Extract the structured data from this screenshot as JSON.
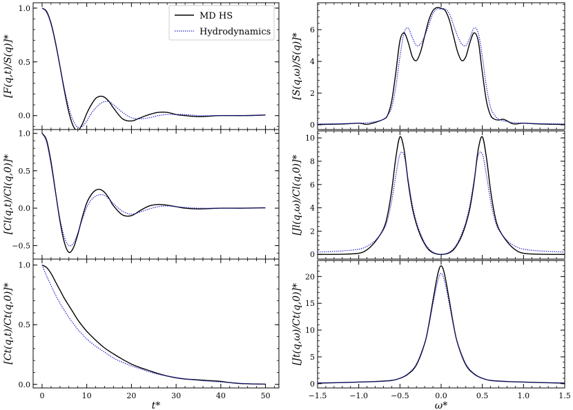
{
  "colors": {
    "md": "#000000",
    "hydro": "#2222cc"
  },
  "legend": {
    "md_label": "MD HS",
    "hydro_label": "Hydrodynamics",
    "placement": "top-right of first panel"
  },
  "chart_data": [
    {
      "type": "line",
      "id": "F",
      "ylabel": "[F(q,t)/S(q)]*",
      "xlabel": "",
      "xlim": [
        -2,
        53
      ],
      "ylim": [
        -0.13,
        1.05
      ],
      "xticks": [
        0,
        10,
        20,
        30,
        40,
        50
      ],
      "yticks": [
        "0.0",
        "0.5",
        "1.0"
      ],
      "series": [
        {
          "name": "MD HS",
          "x": [
            0,
            1,
            2,
            3,
            4,
            5,
            6,
            7,
            8,
            9,
            10,
            11,
            12,
            13,
            14,
            15,
            16,
            18,
            20,
            22,
            24,
            26,
            28,
            30,
            32,
            35,
            40,
            45,
            50
          ],
          "y": [
            1.0,
            0.97,
            0.86,
            0.68,
            0.46,
            0.23,
            0.03,
            -0.1,
            -0.14,
            -0.08,
            0.02,
            0.1,
            0.16,
            0.18,
            0.17,
            0.13,
            0.07,
            -0.03,
            -0.05,
            -0.02,
            0.01,
            0.03,
            0.03,
            0.01,
            0.0,
            -0.01,
            0.0,
            0.0,
            0.005
          ]
        },
        {
          "name": "Hydrodynamics",
          "x": [
            0,
            1,
            2,
            3,
            4,
            5,
            6,
            7,
            8,
            9,
            10,
            11,
            12,
            13,
            14,
            15,
            16,
            18,
            20,
            22,
            24,
            26,
            28,
            30,
            32,
            35,
            40,
            45,
            50
          ],
          "y": [
            1.0,
            0.96,
            0.85,
            0.67,
            0.46,
            0.25,
            0.07,
            -0.05,
            -0.11,
            -0.1,
            -0.05,
            0.02,
            0.07,
            0.11,
            0.13,
            0.13,
            0.1,
            0.03,
            -0.02,
            -0.03,
            -0.02,
            0.0,
            0.01,
            0.01,
            0.01,
            0.0,
            0.0,
            0.0,
            0.005
          ]
        }
      ]
    },
    {
      "type": "line",
      "id": "Cl",
      "ylabel": "[Cl(q,t)/Cl(q,0)]*",
      "xlabel": "",
      "xlim": [
        -2,
        53
      ],
      "ylim": [
        -0.68,
        1.05
      ],
      "xticks": [
        0,
        10,
        20,
        30,
        40,
        50
      ],
      "yticks": [
        "−0.5",
        "0.0",
        "0.5",
        "1.0"
      ],
      "series": [
        {
          "name": "MD HS",
          "x": [
            0,
            1,
            2,
            3,
            4,
            5,
            6,
            7,
            8,
            9,
            10,
            11,
            12,
            13,
            14,
            15,
            16,
            18,
            20,
            22,
            24,
            26,
            28,
            30,
            32,
            35,
            40,
            45,
            50
          ],
          "y": [
            1.0,
            0.91,
            0.62,
            0.22,
            -0.17,
            -0.46,
            -0.59,
            -0.53,
            -0.35,
            -0.12,
            0.07,
            0.18,
            0.24,
            0.25,
            0.21,
            0.13,
            0.03,
            -0.09,
            -0.1,
            -0.03,
            0.03,
            0.05,
            0.04,
            0.02,
            0.0,
            -0.01,
            0.0,
            0.0,
            0.005
          ]
        },
        {
          "name": "Hydrodynamics",
          "x": [
            0,
            1,
            2,
            3,
            4,
            5,
            6,
            7,
            8,
            9,
            10,
            11,
            12,
            13,
            14,
            15,
            16,
            18,
            20,
            22,
            24,
            26,
            28,
            30,
            32,
            35,
            40,
            45,
            50
          ],
          "y": [
            1.0,
            0.88,
            0.58,
            0.21,
            -0.14,
            -0.39,
            -0.5,
            -0.47,
            -0.33,
            -0.15,
            0.01,
            0.11,
            0.16,
            0.18,
            0.17,
            0.12,
            0.06,
            -0.04,
            -0.08,
            -0.05,
            -0.01,
            0.02,
            0.03,
            0.02,
            0.01,
            0.0,
            0.0,
            0.0,
            0.005
          ]
        }
      ]
    },
    {
      "type": "line",
      "id": "Ct",
      "ylabel": "[Ct(q,t)/Ct(q,0)]*",
      "xlabel": "t*",
      "xlim": [
        -2,
        53
      ],
      "ylim": [
        -0.03,
        1.05
      ],
      "xticks": [
        0,
        10,
        20,
        30,
        40,
        50
      ],
      "yticks": [
        "0.0",
        "0.5",
        "1.0"
      ],
      "series": [
        {
          "name": "MD HS",
          "x": [
            0,
            1,
            2,
            3,
            4,
            5,
            6,
            7,
            8,
            9,
            10,
            12,
            14,
            16,
            18,
            20,
            22,
            24,
            26,
            28,
            30,
            32,
            34,
            36,
            38,
            40,
            42,
            44,
            46,
            48,
            50
          ],
          "y": [
            1.0,
            0.98,
            0.93,
            0.86,
            0.79,
            0.72,
            0.66,
            0.6,
            0.54,
            0.49,
            0.445,
            0.37,
            0.305,
            0.255,
            0.21,
            0.17,
            0.14,
            0.115,
            0.09,
            0.07,
            0.055,
            0.045,
            0.04,
            0.035,
            0.03,
            0.025,
            0.015,
            0.008,
            0.005,
            0.003,
            0.002
          ]
        },
        {
          "name": "Hydrodynamics",
          "x": [
            0,
            1,
            2,
            3,
            4,
            5,
            6,
            7,
            8,
            9,
            10,
            12,
            14,
            16,
            18,
            20,
            22,
            24,
            26,
            28,
            30,
            32,
            34,
            36,
            38,
            40,
            42,
            44,
            46,
            48,
            50
          ],
          "y": [
            1.0,
            0.91,
            0.83,
            0.75,
            0.68,
            0.62,
            0.56,
            0.51,
            0.46,
            0.42,
            0.38,
            0.32,
            0.27,
            0.22,
            0.185,
            0.155,
            0.13,
            0.105,
            0.085,
            0.07,
            0.057,
            0.047,
            0.038,
            0.03,
            0.025,
            0.02,
            0.015,
            0.01,
            0.006,
            0.003,
            0.002
          ]
        }
      ]
    },
    {
      "type": "line",
      "id": "S",
      "ylabel": "[S(q,ω)/S(q)]*",
      "xlabel": "",
      "xlim": [
        -1.5,
        1.5
      ],
      "ylim": [
        -0.3,
        7.7
      ],
      "xticks": [
        -1.5,
        -1.0,
        -0.5,
        0.0,
        0.5,
        1.0,
        1.5
      ],
      "yticks": [
        "0",
        "2",
        "4",
        "6"
      ],
      "series": [
        {
          "name": "MD HS",
          "x": [
            -1.5,
            -1.2,
            -1.0,
            -0.9,
            -0.8,
            -0.7,
            -0.65,
            -0.6,
            -0.55,
            -0.5,
            -0.45,
            -0.4,
            -0.35,
            -0.3,
            -0.25,
            -0.2,
            -0.15,
            -0.1,
            -0.05,
            0.0,
            0.05,
            0.1,
            0.15,
            0.2,
            0.25,
            0.3,
            0.35,
            0.4,
            0.45,
            0.5,
            0.55,
            0.6,
            0.65,
            0.7,
            0.75,
            0.8,
            0.85,
            0.9,
            1.0,
            1.2,
            1.5
          ],
          "y": [
            0.02,
            0.05,
            0.1,
            0.03,
            0.15,
            0.35,
            0.6,
            1.5,
            3.3,
            5.3,
            5.8,
            5.2,
            4.3,
            4.05,
            4.6,
            5.6,
            6.6,
            7.2,
            7.4,
            7.35,
            7.2,
            6.6,
            5.6,
            4.6,
            4.05,
            4.3,
            5.2,
            5.8,
            5.3,
            3.3,
            1.5,
            0.6,
            0.35,
            0.3,
            0.35,
            0.25,
            0.1,
            0.05,
            0.1,
            0.05,
            0.02
          ]
        },
        {
          "name": "Hydrodynamics",
          "x": [
            -1.5,
            -1.0,
            -0.8,
            -0.7,
            -0.65,
            -0.6,
            -0.55,
            -0.5,
            -0.45,
            -0.4,
            -0.35,
            -0.3,
            -0.25,
            -0.2,
            -0.15,
            -0.1,
            -0.05,
            0.0,
            0.05,
            0.1,
            0.15,
            0.2,
            0.25,
            0.3,
            0.35,
            0.4,
            0.45,
            0.5,
            0.55,
            0.6,
            0.65,
            0.7,
            0.8,
            1.0,
            1.5
          ],
          "y": [
            0.05,
            0.1,
            0.2,
            0.35,
            0.6,
            1.1,
            2.4,
            4.3,
            5.8,
            6.1,
            5.5,
            5.0,
            5.1,
            5.6,
            6.3,
            7.0,
            7.3,
            7.3,
            7.3,
            7.0,
            6.3,
            5.6,
            5.1,
            5.0,
            5.5,
            6.1,
            5.8,
            4.3,
            2.4,
            1.1,
            0.6,
            0.35,
            0.2,
            0.1,
            0.05
          ]
        }
      ]
    },
    {
      "type": "line",
      "id": "Jl",
      "ylabel": "[Jl(q,ω)/Cl(q,0)]*",
      "xlabel": "",
      "xlim": [
        -1.5,
        1.5
      ],
      "ylim": [
        -0.4,
        10.6
      ],
      "xticks": [
        -1.5,
        -1.0,
        -0.5,
        0.0,
        0.5,
        1.0,
        1.5
      ],
      "yticks": [
        "0",
        "2",
        "4",
        "6",
        "8",
        "10"
      ],
      "series": [
        {
          "name": "MD HS",
          "x": [
            -1.5,
            -1.2,
            -1.0,
            -0.9,
            -0.8,
            -0.7,
            -0.65,
            -0.6,
            -0.55,
            -0.5,
            -0.45,
            -0.4,
            -0.35,
            -0.3,
            -0.25,
            -0.2,
            -0.15,
            -0.1,
            -0.05,
            0.0,
            0.05,
            0.1,
            0.15,
            0.2,
            0.25,
            0.3,
            0.35,
            0.4,
            0.45,
            0.5,
            0.55,
            0.6,
            0.65,
            0.7,
            0.8,
            0.9,
            1.0,
            1.2,
            1.5
          ],
          "y": [
            0.0,
            0.02,
            0.1,
            0.4,
            1.1,
            2.2,
            3.4,
            5.5,
            8.3,
            10.1,
            9.0,
            6.2,
            4.0,
            2.6,
            1.6,
            0.9,
            0.4,
            0.15,
            0.03,
            0.0,
            0.03,
            0.15,
            0.4,
            0.9,
            1.6,
            2.6,
            4.0,
            6.2,
            9.0,
            10.1,
            8.3,
            5.5,
            3.4,
            2.2,
            1.1,
            0.4,
            0.1,
            0.02,
            0.0
          ]
        },
        {
          "name": "Hydrodynamics",
          "x": [
            -1.5,
            -1.2,
            -1.0,
            -0.9,
            -0.8,
            -0.7,
            -0.65,
            -0.6,
            -0.55,
            -0.5,
            -0.45,
            -0.4,
            -0.35,
            -0.3,
            -0.25,
            -0.2,
            -0.15,
            -0.1,
            -0.05,
            0.0,
            0.05,
            0.1,
            0.15,
            0.2,
            0.25,
            0.3,
            0.35,
            0.4,
            0.45,
            0.5,
            0.55,
            0.6,
            0.65,
            0.7,
            0.8,
            0.9,
            1.0,
            1.2,
            1.5
          ],
          "y": [
            0.2,
            0.3,
            0.45,
            0.7,
            1.2,
            2.1,
            3.0,
            4.6,
            6.8,
            8.6,
            8.5,
            6.4,
            4.3,
            2.8,
            1.8,
            1.0,
            0.5,
            0.2,
            0.05,
            0.0,
            0.05,
            0.2,
            0.5,
            1.0,
            1.8,
            2.8,
            4.3,
            6.4,
            8.5,
            8.6,
            6.8,
            4.6,
            3.0,
            2.1,
            1.2,
            0.7,
            0.45,
            0.3,
            0.2
          ]
        }
      ]
    },
    {
      "type": "line",
      "id": "Jt",
      "ylabel": "[Jt(q,ω)/Ct(q,0)]*",
      "xlabel": "ω*",
      "xlim": [
        -1.5,
        1.5
      ],
      "ylim": [
        -0.8,
        23.0
      ],
      "xticks": [
        -1.5,
        -1.0,
        -0.5,
        0.0,
        0.5,
        1.0,
        1.5
      ],
      "xticklabels": [
        "−1.5",
        "−1.0",
        "−0.5",
        "0.0",
        "0.5",
        "1.0",
        "1.5"
      ],
      "yticks": [
        "0",
        "5",
        "10",
        "15",
        "20"
      ],
      "series": [
        {
          "name": "MD HS",
          "x": [
            -1.5,
            -1.2,
            -1.0,
            -0.8,
            -0.6,
            -0.5,
            -0.4,
            -0.3,
            -0.2,
            -0.15,
            -0.1,
            -0.05,
            -0.02,
            0.0,
            0.02,
            0.05,
            0.1,
            0.15,
            0.2,
            0.3,
            0.4,
            0.5,
            0.6,
            0.8,
            1.0,
            1.2,
            1.5
          ],
          "y": [
            0.1,
            0.2,
            0.3,
            0.4,
            0.6,
            1.0,
            1.8,
            3.5,
            7.5,
            11.0,
            15.5,
            19.8,
            21.6,
            22.0,
            21.6,
            19.8,
            15.5,
            11.0,
            7.5,
            3.5,
            1.8,
            1.0,
            0.6,
            0.4,
            0.3,
            0.2,
            0.1
          ]
        },
        {
          "name": "Hydrodynamics",
          "x": [
            -1.5,
            -1.2,
            -1.0,
            -0.8,
            -0.6,
            -0.5,
            -0.4,
            -0.3,
            -0.2,
            -0.15,
            -0.1,
            -0.05,
            -0.02,
            0.0,
            0.02,
            0.05,
            0.1,
            0.15,
            0.2,
            0.3,
            0.4,
            0.5,
            0.6,
            0.8,
            1.0,
            1.2,
            1.5
          ],
          "y": [
            0.15,
            0.2,
            0.3,
            0.4,
            0.6,
            1.0,
            1.9,
            3.7,
            7.6,
            10.8,
            14.8,
            18.6,
            20.2,
            20.6,
            20.2,
            18.6,
            14.8,
            10.8,
            7.6,
            3.7,
            1.9,
            1.0,
            0.6,
            0.4,
            0.3,
            0.2,
            0.15
          ]
        }
      ]
    }
  ]
}
